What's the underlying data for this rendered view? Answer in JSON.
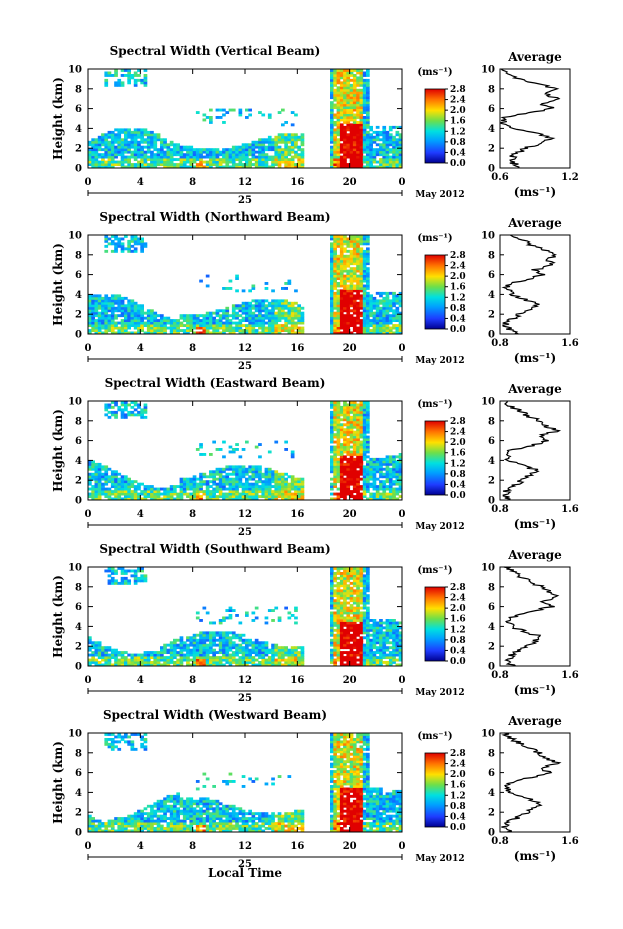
{
  "figure": {
    "xlabel": "Local Time",
    "ylabel": "Height (km)",
    "date_label": "May 2012",
    "day_label": "25",
    "colorbar_unit": "(ms⁻¹)",
    "avg_title": "Average",
    "avg_xlabel": "(ms⁻¹)"
  },
  "chart_data": [
    {
      "type": "heatmap",
      "title": "Spectral Width (Vertical Beam)",
      "xlabel": "Local Time",
      "ylabel": "Height (km)",
      "x_ticks": [
        "0",
        "4",
        "8",
        "12",
        "16",
        "20",
        "0"
      ],
      "y_ticks": [
        "0",
        "2",
        "4",
        "6",
        "8",
        "10"
      ],
      "xlim": [
        0,
        24
      ],
      "ylim": [
        0,
        10
      ],
      "colorbar": {
        "unit": "(ms⁻¹)",
        "ticks": [
          "0.0",
          "0.4",
          "0.8",
          "1.2",
          "1.6",
          "2.0",
          "2.4",
          "2.8"
        ],
        "range": [
          0,
          2.8
        ]
      },
      "data_gap_hours": [
        16.3,
        18.3
      ],
      "average_profile": {
        "title": "Average",
        "xlabel": "(ms⁻¹)",
        "x_ticks": [
          "0.6",
          "1.2"
        ],
        "xlim": [
          0.6,
          1.2
        ],
        "height": [
          0,
          0.5,
          1,
          1.5,
          2,
          2.5,
          3,
          3.5,
          4,
          4.5,
          5,
          5.5,
          6,
          6.5,
          7,
          7.5,
          8,
          8.5,
          9,
          9.5,
          10
        ],
        "value": [
          0.78,
          0.72,
          0.7,
          0.74,
          0.82,
          0.95,
          1.05,
          0.9,
          0.7,
          0.63,
          0.62,
          0.8,
          1.05,
          0.95,
          1.1,
          0.98,
          1.08,
          0.92,
          0.75,
          0.68,
          0.62
        ]
      }
    },
    {
      "type": "heatmap",
      "title": "Spectral Width (Northward Beam)",
      "xlabel": "Local Time",
      "ylabel": "Height (km)",
      "x_ticks": [
        "0",
        "4",
        "8",
        "12",
        "16",
        "20",
        "0"
      ],
      "y_ticks": [
        "0",
        "2",
        "4",
        "6",
        "8",
        "10"
      ],
      "xlim": [
        0,
        24
      ],
      "ylim": [
        0,
        10
      ],
      "colorbar": {
        "unit": "(ms⁻¹)",
        "ticks": [
          "0.0",
          "0.4",
          "0.8",
          "1.2",
          "1.6",
          "2.0",
          "2.4",
          "2.8"
        ],
        "range": [
          0,
          2.8
        ]
      },
      "data_gap_hours": [
        16.3,
        18.3
      ],
      "average_profile": {
        "title": "Average",
        "xlabel": "(ms⁻¹)",
        "x_ticks": [
          "0.8",
          "1.6"
        ],
        "xlim": [
          0.8,
          1.6
        ],
        "height": [
          0,
          0.5,
          1,
          1.5,
          2,
          2.5,
          3,
          3.5,
          4,
          4.5,
          5,
          5.5,
          6,
          6.5,
          7,
          7.5,
          8,
          8.5,
          9,
          9.5,
          10
        ],
        "value": [
          1.0,
          0.9,
          0.86,
          0.93,
          1.02,
          1.15,
          1.22,
          1.08,
          0.95,
          0.88,
          0.9,
          1.1,
          1.3,
          1.2,
          1.42,
          1.3,
          1.45,
          1.32,
          1.15,
          1.05,
          0.95
        ]
      }
    },
    {
      "type": "heatmap",
      "title": "Spectral Width (Eastward Beam)",
      "xlabel": "Local Time",
      "ylabel": "Height (km)",
      "x_ticks": [
        "0",
        "4",
        "8",
        "12",
        "16",
        "20",
        "0"
      ],
      "y_ticks": [
        "0",
        "2",
        "4",
        "6",
        "8",
        "10"
      ],
      "xlim": [
        0,
        24
      ],
      "ylim": [
        0,
        10
      ],
      "colorbar": {
        "unit": "(ms⁻¹)",
        "ticks": [
          "0.0",
          "0.4",
          "0.8",
          "1.2",
          "1.6",
          "2.0",
          "2.4",
          "2.8"
        ],
        "range": [
          0,
          2.8
        ]
      },
      "data_gap_hours": [
        16.3,
        18.3
      ],
      "average_profile": {
        "title": "Average",
        "xlabel": "(ms⁻¹)",
        "x_ticks": [
          "0.8",
          "1.6"
        ],
        "xlim": [
          0.8,
          1.6
        ],
        "height": [
          0,
          0.5,
          1,
          1.5,
          2,
          2.5,
          3,
          3.5,
          4,
          4.5,
          5,
          5.5,
          6,
          6.5,
          7,
          7.5,
          8,
          8.5,
          9,
          9.5,
          10
        ],
        "value": [
          0.9,
          0.85,
          0.88,
          0.98,
          1.05,
          1.15,
          1.22,
          1.05,
          0.92,
          0.86,
          0.9,
          1.15,
          1.35,
          1.25,
          1.45,
          1.32,
          1.25,
          1.12,
          1.02,
          0.92,
          0.85
        ]
      }
    },
    {
      "type": "heatmap",
      "title": "Spectral Width (Southward Beam)",
      "xlabel": "Local Time",
      "ylabel": "Height (km)",
      "x_ticks": [
        "0",
        "4",
        "8",
        "12",
        "16",
        "20",
        "0"
      ],
      "y_ticks": [
        "0",
        "2",
        "4",
        "6",
        "8",
        "10"
      ],
      "xlim": [
        0,
        24
      ],
      "ylim": [
        0,
        10
      ],
      "colorbar": {
        "unit": "(ms⁻¹)",
        "ticks": [
          "0.0",
          "0.4",
          "0.8",
          "1.2",
          "1.6",
          "2.0",
          "2.4",
          "2.8"
        ],
        "range": [
          0,
          2.8
        ]
      },
      "data_gap_hours": [
        16.3,
        18.3
      ],
      "average_profile": {
        "title": "Average",
        "xlabel": "(ms⁻¹)",
        "x_ticks": [
          "0.8",
          "1.6"
        ],
        "xlim": [
          0.8,
          1.6
        ],
        "height": [
          0,
          0.5,
          1,
          1.5,
          2,
          2.5,
          3,
          3.5,
          4,
          4.5,
          5,
          5.5,
          6,
          6.5,
          7,
          7.5,
          8,
          8.5,
          9,
          9.5,
          10
        ],
        "value": [
          0.95,
          0.88,
          0.92,
          1.0,
          1.1,
          1.2,
          1.25,
          1.08,
          0.92,
          0.9,
          0.95,
          1.18,
          1.38,
          1.3,
          1.48,
          1.35,
          1.28,
          1.15,
          1.05,
          0.95,
          0.88
        ]
      }
    },
    {
      "type": "heatmap",
      "title": "Spectral Width (Westward Beam)",
      "xlabel": "Local Time",
      "ylabel": "Height (km)",
      "x_ticks": [
        "0",
        "4",
        "8",
        "12",
        "16",
        "20",
        "0"
      ],
      "y_ticks": [
        "0",
        "2",
        "4",
        "6",
        "8",
        "10"
      ],
      "xlim": [
        0,
        24
      ],
      "ylim": [
        0,
        10
      ],
      "colorbar": {
        "unit": "(ms⁻¹)",
        "ticks": [
          "0.0",
          "0.4",
          "0.8",
          "1.2",
          "1.6",
          "2.0",
          "2.4",
          "2.8"
        ],
        "range": [
          0,
          2.8
        ]
      },
      "data_gap_hours": [
        16.3,
        18.3
      ],
      "average_profile": {
        "title": "Average",
        "xlabel": "(ms⁻¹)",
        "x_ticks": [
          "0.8",
          "1.6"
        ],
        "xlim": [
          0.8,
          1.6
        ],
        "height": [
          0,
          0.5,
          1,
          1.5,
          2,
          2.5,
          3,
          3.5,
          4,
          4.5,
          5,
          5.5,
          6,
          6.5,
          7,
          7.5,
          8,
          8.5,
          9,
          9.5,
          10
        ],
        "value": [
          0.92,
          0.86,
          0.9,
          1.0,
          1.1,
          1.22,
          1.25,
          1.08,
          0.92,
          0.88,
          0.92,
          1.15,
          1.35,
          1.28,
          1.45,
          1.32,
          1.25,
          1.12,
          1.02,
          0.92,
          0.86
        ]
      }
    }
  ]
}
